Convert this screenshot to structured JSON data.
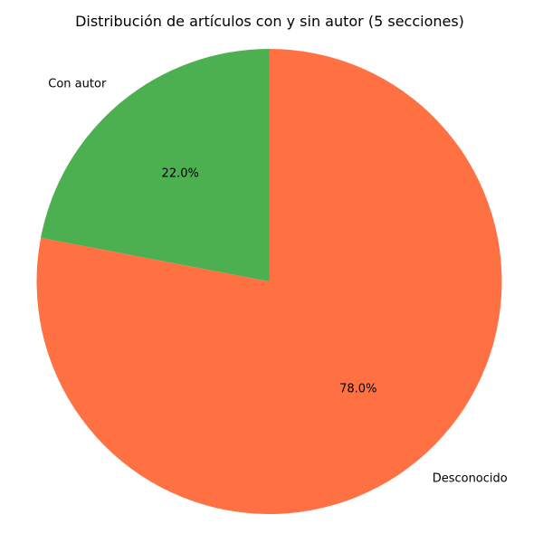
{
  "chart_data": {
    "type": "pie",
    "title": "Distribución de artículos con y sin autor (5 secciones)",
    "start_angle_deg": 90,
    "direction": "counterclockwise",
    "slices": [
      {
        "label": "Con autor",
        "value": 22.0,
        "percent_label": "22.0%",
        "color": "#4CAF50"
      },
      {
        "label": "Desconocido",
        "value": 78.0,
        "percent_label": "78.0%",
        "color": "#FF7043"
      }
    ]
  }
}
